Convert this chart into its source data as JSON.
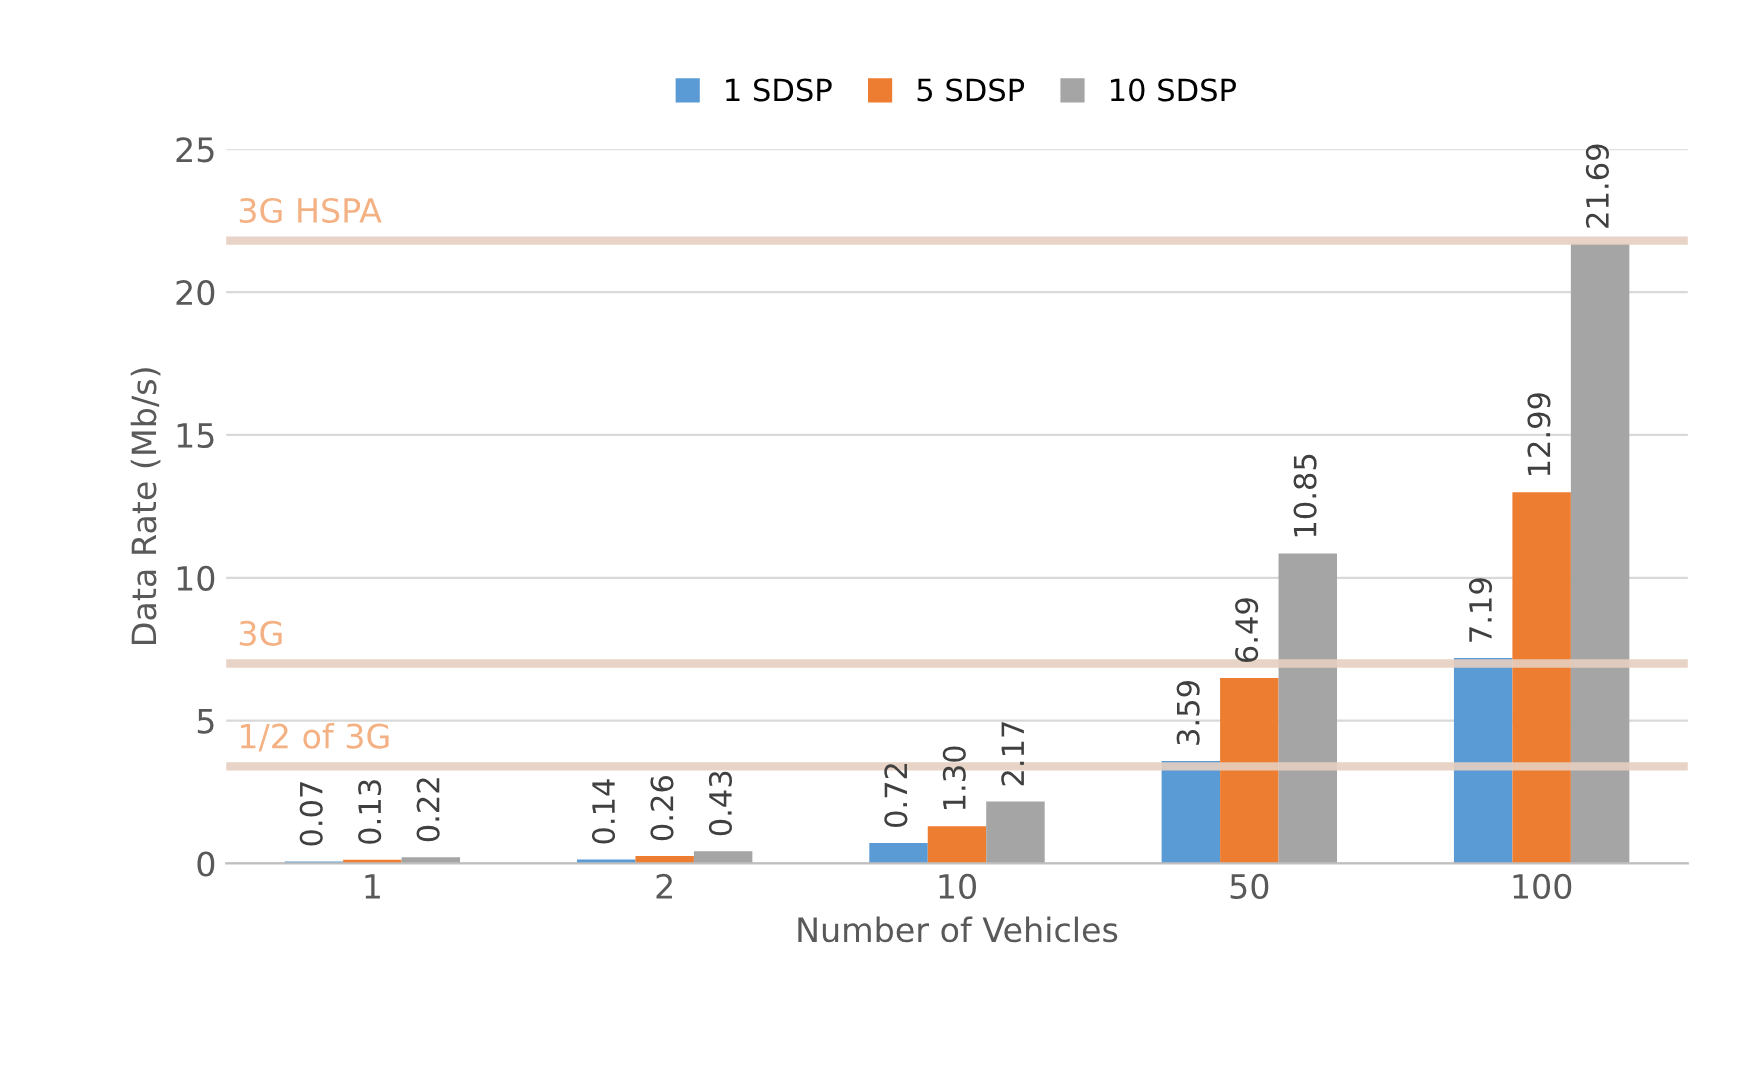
{
  "chart_data": {
    "type": "bar",
    "xlabel": "Number of Vehicles",
    "ylabel": "Data Rate (Mb/s)",
    "categories": [
      "1",
      "2",
      "10",
      "50",
      "100"
    ],
    "series": [
      {
        "name": "1 SDSP",
        "color": "#5b9bd5",
        "values": [
          0.07,
          0.14,
          0.72,
          3.59,
          7.19
        ],
        "value_labels": [
          "0.07",
          "0.14",
          "0.72",
          "3.59",
          "7.19"
        ]
      },
      {
        "name": "5 SDSP",
        "color": "#ed7d31",
        "values": [
          0.13,
          0.26,
          1.3,
          6.49,
          12.99
        ],
        "value_labels": [
          "0.13",
          "0.26",
          "1.30",
          "6.49",
          "12.99"
        ]
      },
      {
        "name": "10 SDSP",
        "color": "#a5a5a5",
        "values": [
          0.22,
          0.43,
          2.17,
          10.85,
          21.69
        ],
        "value_labels": [
          "0.22",
          "0.43",
          "2.17",
          "10.85",
          "21.69"
        ]
      }
    ],
    "ylim": [
      0,
      25
    ],
    "yticks": [
      0,
      5,
      10,
      15,
      20,
      25
    ],
    "grid": "y",
    "legend": "top",
    "ref_lines": [
      {
        "axis": "y",
        "value": 21.8,
        "label": "3G HSPA",
        "color": "#e6cfc0"
      },
      {
        "axis": "y",
        "value": 7,
        "label": "3G",
        "color": "#e6cfc0"
      },
      {
        "axis": "y",
        "value": 3.4,
        "label": "1/2 of 3G",
        "color": "#e6cfc0"
      }
    ]
  }
}
